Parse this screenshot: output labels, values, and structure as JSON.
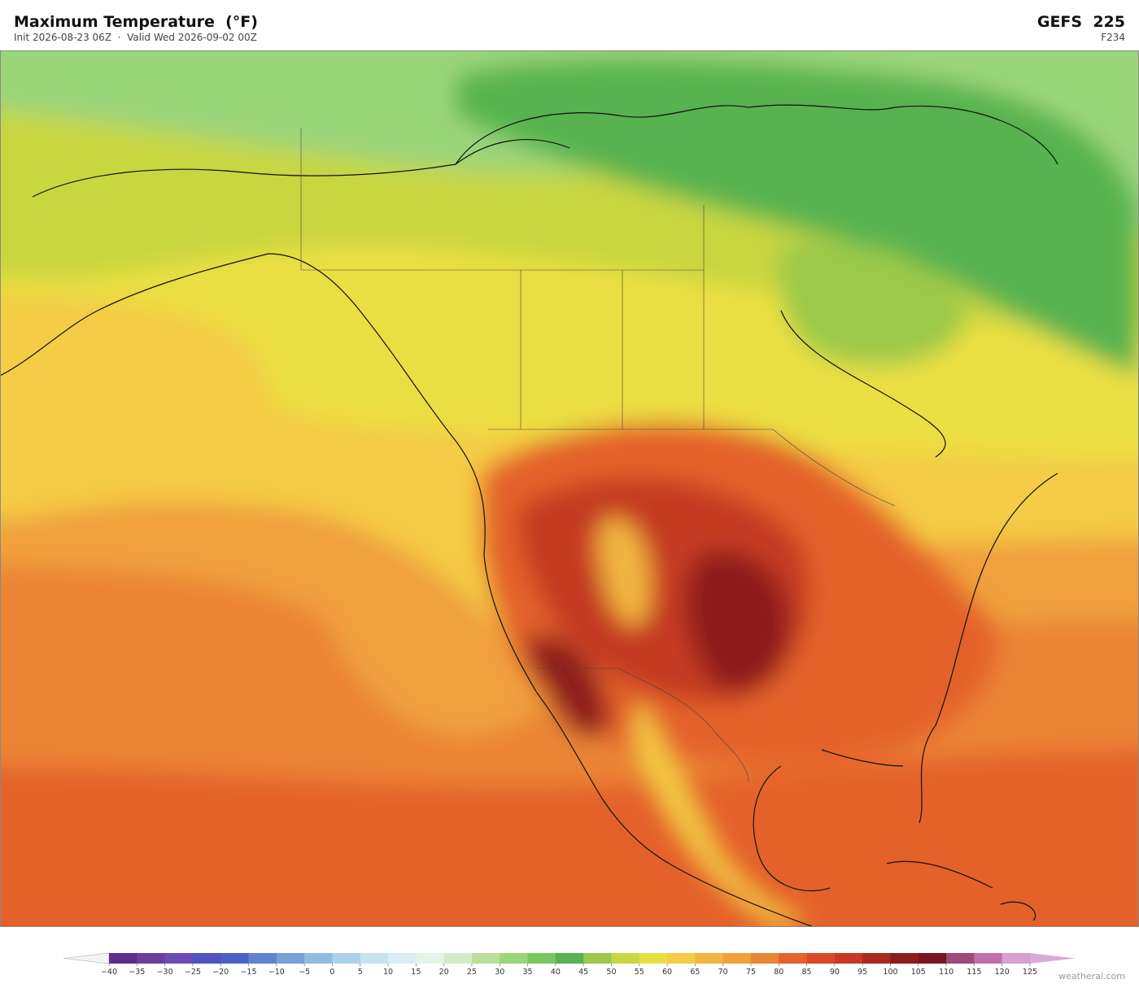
{
  "header": {
    "title": "Maximum Temperature  (°F)",
    "subtitle": "Init 2026-08-23 06Z  ·  Valid Wed 2026-09-02 00Z",
    "model": "GEFS  225",
    "forecast_hour": "F234"
  },
  "colorbar": {
    "ticks": [
      {
        "value": -40,
        "label": "−40"
      },
      {
        "value": -35,
        "label": "−35"
      },
      {
        "value": -30,
        "label": "−30"
      },
      {
        "value": -25,
        "label": "−25"
      },
      {
        "value": -20,
        "label": "−20"
      },
      {
        "value": -15,
        "label": "−15"
      },
      {
        "value": -10,
        "label": "−10"
      },
      {
        "value": -5,
        "label": "−5"
      },
      0,
      5,
      10,
      15,
      20,
      25,
      30,
      35,
      40,
      45,
      50,
      55,
      60,
      65,
      70,
      75,
      80,
      85,
      90,
      95,
      100,
      105,
      110,
      115,
      120,
      125
    ],
    "colors": [
      "#5e2e8f",
      "#6a3fa0",
      "#6a4db4",
      "#4d54c2",
      "#4a62c8",
      "#6183d0",
      "#7a9fd8",
      "#92bbe0",
      "#abd2ea",
      "#c4e2f0",
      "#d9edf3",
      "#e4f3e8",
      "#d2ecc8",
      "#b9e09a",
      "#9bd57a",
      "#78c860",
      "#56b350",
      "#9bc94a",
      "#c8d640",
      "#eadf42",
      "#f4cc45",
      "#f2b540",
      "#f0a03c",
      "#eb8434",
      "#e4622c",
      "#d84a28",
      "#c53a24",
      "#a82a20",
      "#8e1c1c",
      "#7a1620",
      "#a04878",
      "#c070a8",
      "#d8a0d0"
    ],
    "under_color": "#f4f4f4",
    "over_color": "#dcaad8"
  },
  "footer": {
    "credit": "weatherai.com"
  }
}
